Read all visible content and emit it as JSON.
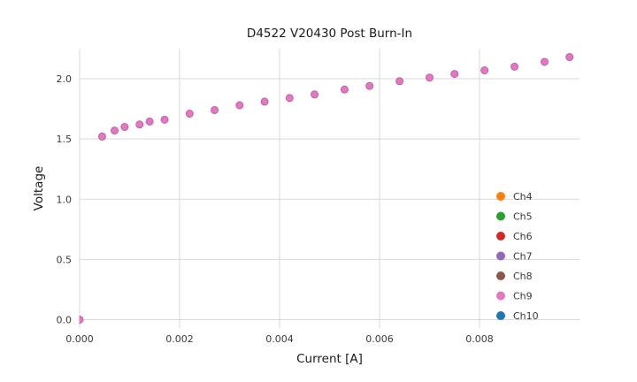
{
  "figure": {
    "background_color": "#ffffff",
    "grid_color": "#d9d9d9",
    "tick_label_color": "#3a3a3a"
  },
  "chart_data": {
    "type": "scatter",
    "title": "D4522 V20430 Post Burn-In",
    "xlabel": "Current [A]",
    "ylabel": "Voltage",
    "xlim": [
      0,
      0.01
    ],
    "ylim": [
      -0.07,
      2.25
    ],
    "grid": true,
    "legend_position": "lower-right",
    "marker_edge_color": "#bf5fa9",
    "xticks": [
      {
        "v": 0.0,
        "label": "0.000"
      },
      {
        "v": 0.002,
        "label": "0.002"
      },
      {
        "v": 0.004,
        "label": "0.004"
      },
      {
        "v": 0.006,
        "label": "0.006"
      },
      {
        "v": 0.008,
        "label": "0.008"
      }
    ],
    "yticks": [
      {
        "v": 0.0,
        "label": "0.0"
      },
      {
        "v": 0.5,
        "label": "0.5"
      },
      {
        "v": 1.0,
        "label": "1.0"
      },
      {
        "v": 1.5,
        "label": "1.5"
      },
      {
        "v": 2.0,
        "label": "2.0"
      }
    ],
    "note": "All channels overlap on the same I-V curve; Ch9 (pink) is drawn on top so only its markers are visible.",
    "series": [
      {
        "name": "Ch4",
        "color": "#ff7f0e"
      },
      {
        "name": "Ch5",
        "color": "#2ca02c"
      },
      {
        "name": "Ch6",
        "color": "#d62728"
      },
      {
        "name": "Ch7",
        "color": "#9467bd"
      },
      {
        "name": "Ch8",
        "color": "#8c564b"
      },
      {
        "name": "Ch9",
        "color": "#e377c2",
        "x": [
          0.0,
          0.00045,
          0.0007,
          0.0009,
          0.0012,
          0.0014,
          0.0017,
          0.0022,
          0.0027,
          0.0032,
          0.0037,
          0.0042,
          0.0047,
          0.0053,
          0.0058,
          0.0064,
          0.007,
          0.0075,
          0.0081,
          0.0087,
          0.0093,
          0.0098
        ],
        "y": [
          0.0,
          1.52,
          1.57,
          1.6,
          1.62,
          1.645,
          1.66,
          1.71,
          1.74,
          1.78,
          1.81,
          1.84,
          1.87,
          1.91,
          1.94,
          1.98,
          2.01,
          2.04,
          2.07,
          2.1,
          2.14,
          2.18
        ]
      },
      {
        "name": "Ch10",
        "color": "#1f77b4"
      }
    ]
  }
}
